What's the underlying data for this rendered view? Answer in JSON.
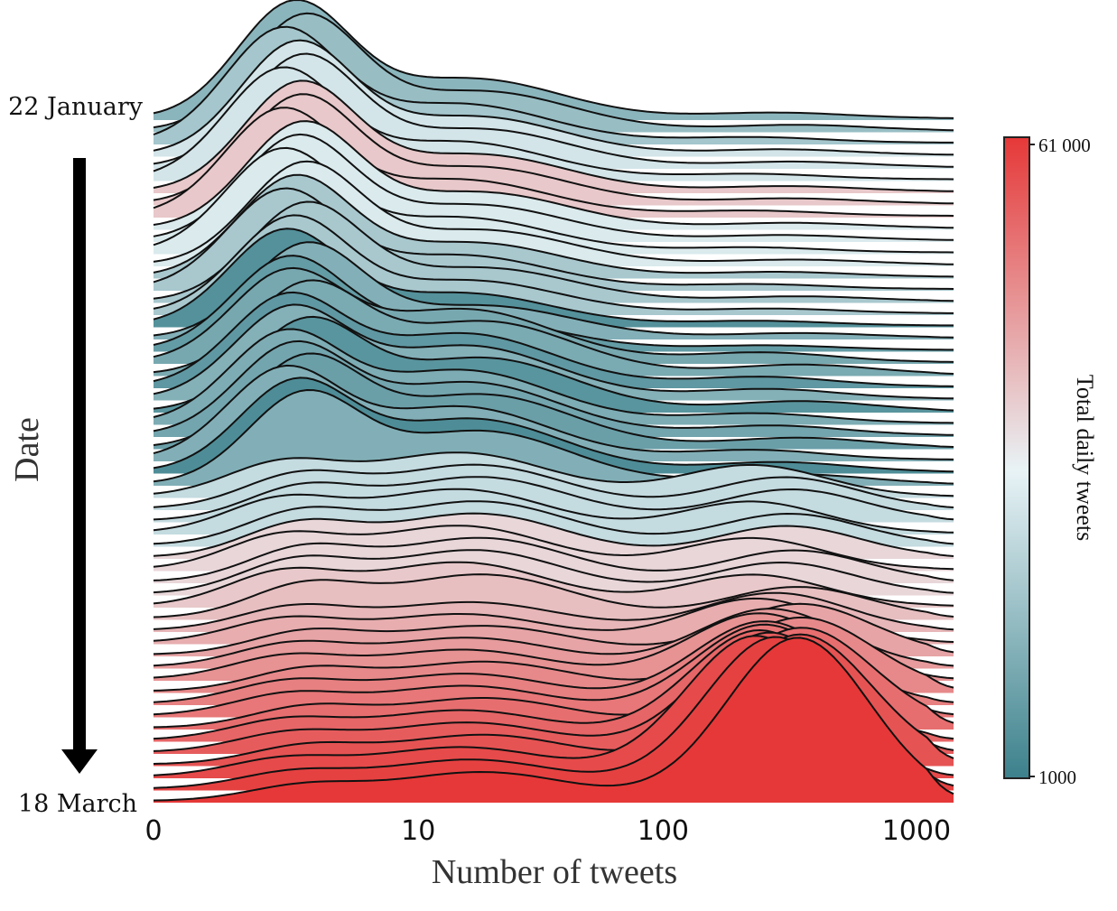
{
  "chart_data": {
    "type": "ridgeline",
    "xlabel": "Number of tweets",
    "x_ticks": [
      "0",
      "10",
      "100",
      "1000"
    ],
    "x_scale": "log1p",
    "ylabel": "Date",
    "date_start_label": "22 January",
    "date_end_label": "18 March",
    "colorbar": {
      "label": "Total daily tweets",
      "min_label": "1000",
      "max_label": "61 000",
      "colors": [
        "#3c818c",
        "#e8f3f6",
        "#e63838"
      ]
    },
    "ridge_count": 57,
    "ridge_peaks": [
      {
        "day": 1,
        "peak_x": 3,
        "relative_height": 1.0
      },
      {
        "day": 29,
        "peak_x": 3,
        "relative_height": 0.8
      },
      {
        "day": 57,
        "peak_x": 280,
        "relative_height": 0.9
      }
    ]
  }
}
